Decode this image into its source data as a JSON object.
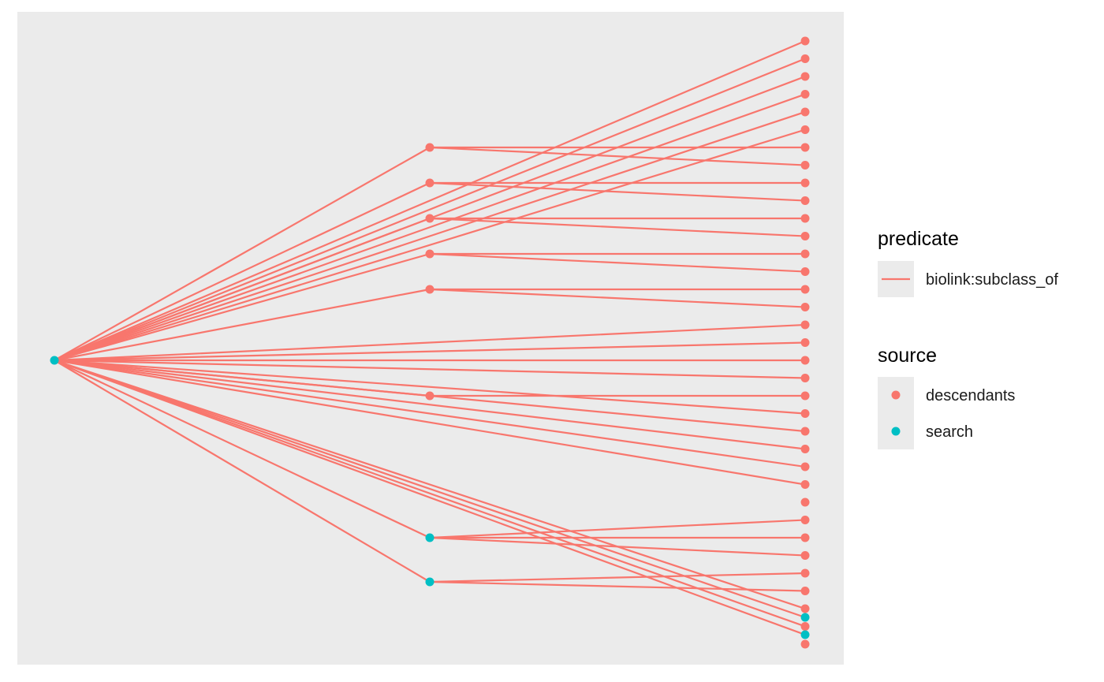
{
  "colors": {
    "panel_background": "#EBEBEB",
    "descendants": "#F8766D",
    "search": "#00BFC4",
    "edge": "#F8766D"
  },
  "legend": {
    "predicate": {
      "title": "predicate",
      "items": [
        {
          "label": "biolink:subclass_of",
          "kind": "line",
          "color": "#F8766D"
        }
      ]
    },
    "source": {
      "title": "source",
      "items": [
        {
          "label": "descendants",
          "kind": "point",
          "color": "#F8766D"
        },
        {
          "label": "search",
          "kind": "point",
          "color": "#00BFC4"
        }
      ]
    }
  },
  "graph": {
    "layout": "tree-left-to-right",
    "predicate": "biolink:subclass_of",
    "levels": [
      {
        "level": 0,
        "nodes": [
          {
            "id": "root",
            "source": "search"
          }
        ]
      },
      {
        "level": 1,
        "nodes": [
          {
            "id": "m1",
            "source": "descendants"
          },
          {
            "id": "m2",
            "source": "descendants"
          },
          {
            "id": "m3",
            "source": "descendants"
          },
          {
            "id": "m4",
            "source": "descendants"
          },
          {
            "id": "m5",
            "source": "descendants"
          },
          {
            "id": "m6",
            "source": "descendants"
          },
          {
            "id": "m7",
            "source": "search"
          },
          {
            "id": "m8",
            "source": "search"
          }
        ]
      },
      {
        "level": 2,
        "nodes": [
          {
            "id": "r1",
            "source": "descendants"
          },
          {
            "id": "r2",
            "source": "descendants"
          },
          {
            "id": "r3",
            "source": "descendants"
          },
          {
            "id": "r4",
            "source": "descendants"
          },
          {
            "id": "r5",
            "source": "descendants"
          },
          {
            "id": "r6",
            "source": "descendants"
          },
          {
            "id": "r7",
            "source": "descendants"
          },
          {
            "id": "r8",
            "source": "descendants"
          },
          {
            "id": "r9",
            "source": "descendants"
          },
          {
            "id": "r10",
            "source": "descendants"
          },
          {
            "id": "r11",
            "source": "descendants"
          },
          {
            "id": "r12",
            "source": "descendants"
          },
          {
            "id": "r13",
            "source": "descendants"
          },
          {
            "id": "r14",
            "source": "descendants"
          },
          {
            "id": "r15",
            "source": "descendants"
          },
          {
            "id": "r16",
            "source": "descendants"
          },
          {
            "id": "r17",
            "source": "descendants"
          },
          {
            "id": "r18",
            "source": "descendants"
          },
          {
            "id": "r19",
            "source": "descendants"
          },
          {
            "id": "r20",
            "source": "descendants"
          },
          {
            "id": "r21",
            "source": "descendants"
          },
          {
            "id": "r22",
            "source": "descendants"
          },
          {
            "id": "r23",
            "source": "descendants"
          },
          {
            "id": "r24",
            "source": "descendants"
          },
          {
            "id": "r25",
            "source": "descendants"
          },
          {
            "id": "r26",
            "source": "descendants"
          },
          {
            "id": "r27",
            "source": "descendants"
          },
          {
            "id": "r28",
            "source": "descendants"
          },
          {
            "id": "r29",
            "source": "descendants"
          },
          {
            "id": "r30",
            "source": "descendants"
          },
          {
            "id": "r31",
            "source": "descendants"
          },
          {
            "id": "r32",
            "source": "descendants"
          },
          {
            "id": "r33",
            "source": "descendants"
          },
          {
            "id": "r34",
            "source": "descendants"
          },
          {
            "id": "r35",
            "source": "descendants"
          },
          {
            "id": "r36",
            "source": "search"
          },
          {
            "id": "r37",
            "source": "search"
          }
        ]
      }
    ],
    "edges": [
      [
        "root",
        "m1"
      ],
      [
        "root",
        "m2"
      ],
      [
        "root",
        "m3"
      ],
      [
        "root",
        "m4"
      ],
      [
        "root",
        "m5"
      ],
      [
        "root",
        "m6"
      ],
      [
        "root",
        "m7"
      ],
      [
        "root",
        "m8"
      ],
      [
        "root",
        "r1"
      ],
      [
        "root",
        "r2"
      ],
      [
        "root",
        "r3"
      ],
      [
        "root",
        "r4"
      ],
      [
        "root",
        "r5"
      ],
      [
        "root",
        "r6"
      ],
      [
        "root",
        "r17"
      ],
      [
        "root",
        "r18"
      ],
      [
        "root",
        "r19"
      ],
      [
        "root",
        "r20"
      ],
      [
        "root",
        "r22"
      ],
      [
        "root",
        "r23"
      ],
      [
        "root",
        "r24"
      ],
      [
        "root",
        "r25"
      ],
      [
        "root",
        "r26"
      ],
      [
        "root",
        "r33"
      ],
      [
        "root",
        "r34"
      ],
      [
        "root",
        "r36"
      ],
      [
        "root",
        "r37"
      ],
      [
        "m1",
        "r7"
      ],
      [
        "m1",
        "r8"
      ],
      [
        "m2",
        "r9"
      ],
      [
        "m2",
        "r10"
      ],
      [
        "m3",
        "r11"
      ],
      [
        "m3",
        "r12"
      ],
      [
        "m4",
        "r13"
      ],
      [
        "m4",
        "r14"
      ],
      [
        "m5",
        "r15"
      ],
      [
        "m5",
        "r16"
      ],
      [
        "m6",
        "r21"
      ],
      [
        "m7",
        "r28"
      ],
      [
        "m7",
        "r29"
      ],
      [
        "m7",
        "r30"
      ],
      [
        "m8",
        "r31"
      ],
      [
        "m8",
        "r32"
      ]
    ]
  }
}
